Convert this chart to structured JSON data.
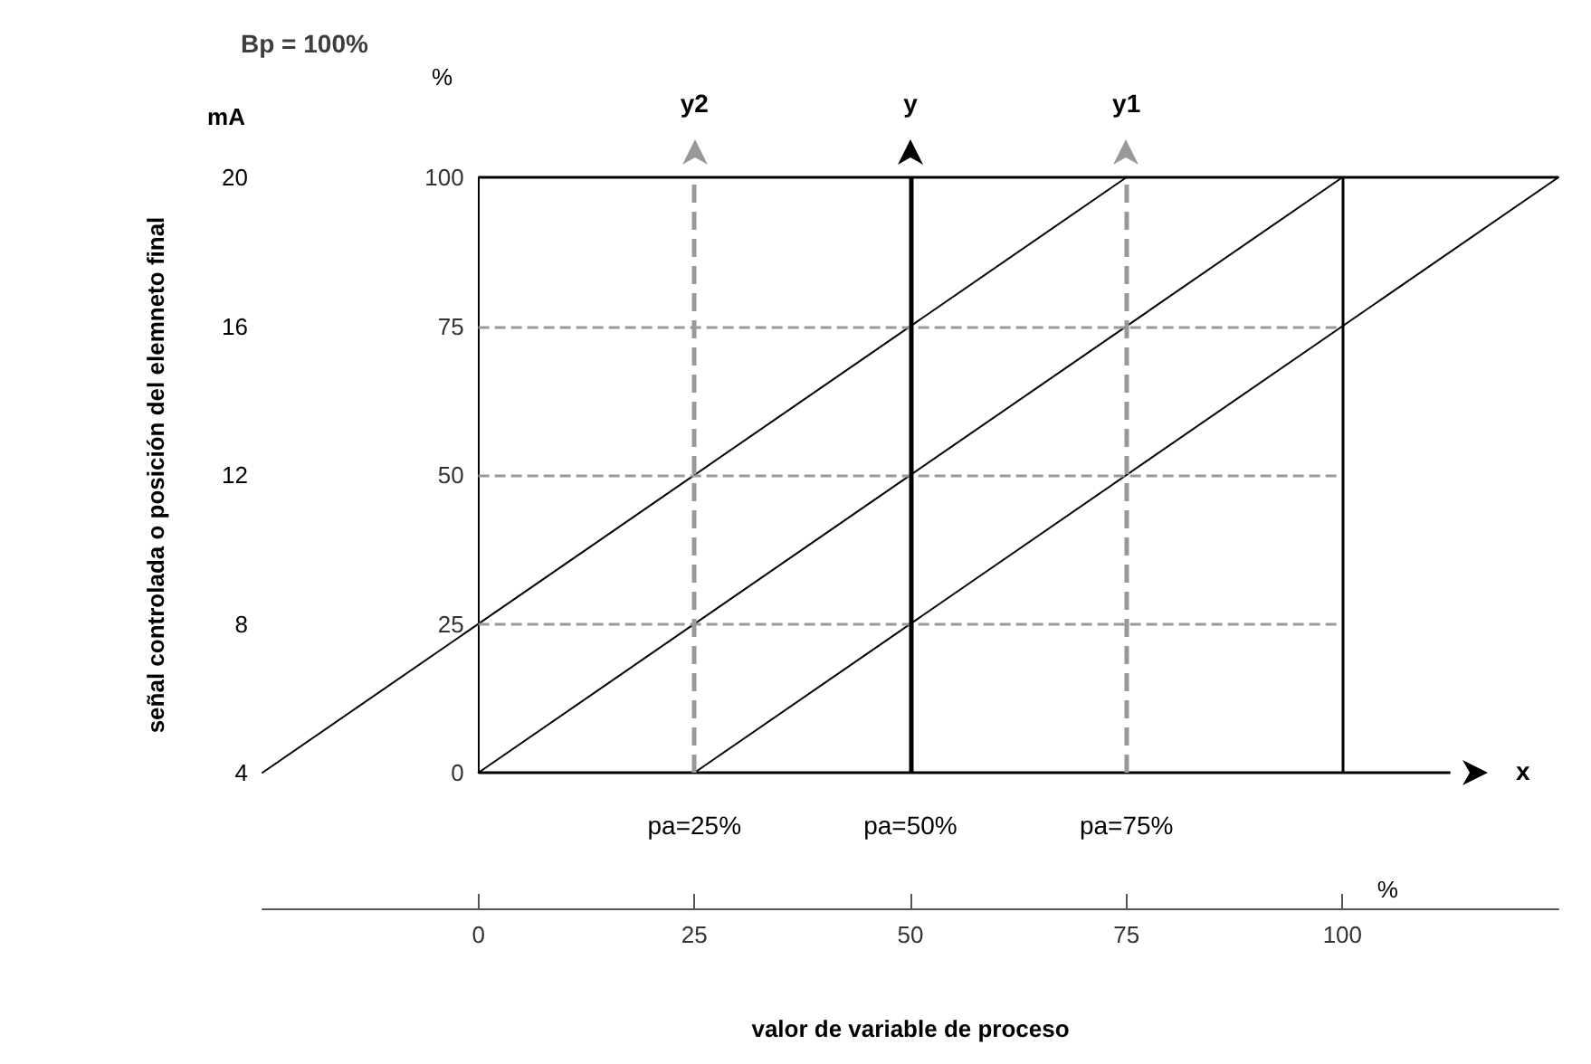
{
  "chart_data": {
    "type": "line",
    "title": "Bp = 100%",
    "xlabel": "valor de variable de proceso",
    "ylabel": "señal controlada o posición del elemneto final",
    "xlim": [
      -25,
      125
    ],
    "xticks": [
      0,
      25,
      50,
      75,
      100
    ],
    "ylim": [
      4,
      20
    ],
    "yticks": [
      4,
      8,
      12,
      16,
      20
    ],
    "y2lim": [
      0,
      100
    ],
    "y2ticks": [
      0,
      25,
      50,
      75,
      100
    ],
    "series": [
      {
        "color": "#000000",
        "axis": "y2",
        "x": [
          -25,
          75
        ],
        "values": [
          0,
          100
        ]
      },
      {
        "color": "#000000",
        "axis": "y2",
        "x": [
          0,
          100
        ],
        "values": [
          0,
          100
        ]
      },
      {
        "color": "#000000",
        "axis": "y2",
        "x": [
          25,
          125
        ],
        "values": [
          0,
          100
        ]
      }
    ],
    "ref_lines": [
      {
        "axis": "y2",
        "value": 25,
        "color": "#999999",
        "line_style": "dashed"
      },
      {
        "axis": "y2",
        "value": 50,
        "color": "#999999",
        "line_style": "dashed"
      },
      {
        "axis": "y2",
        "value": 75,
        "color": "#999999",
        "line_style": "dashed"
      },
      {
        "axis": "y2",
        "value": 100,
        "color": "#000000",
        "line_style": "solid"
      },
      {
        "axis": "y2",
        "value": 0,
        "color": "#000000",
        "line_style": "solid",
        "label": "x"
      },
      {
        "axis": "x",
        "value": 100,
        "color": "#000000",
        "line_style": "solid"
      },
      {
        "axis": "x",
        "value": 25,
        "color": "#999999",
        "line_style": "dashed",
        "label": "y2"
      },
      {
        "axis": "x",
        "value": 50,
        "color": "#000000",
        "line_style": "solid",
        "label": "y"
      },
      {
        "axis": "x",
        "value": 75,
        "color": "#999999",
        "line_style": "dashed",
        "label": "y1"
      }
    ],
    "annotations": [
      "pa=25%",
      "pa=50%",
      "pa=75%",
      "mA",
      "%",
      "%"
    ],
    "marker": "none",
    "line_style": "solid",
    "grid": false
  }
}
